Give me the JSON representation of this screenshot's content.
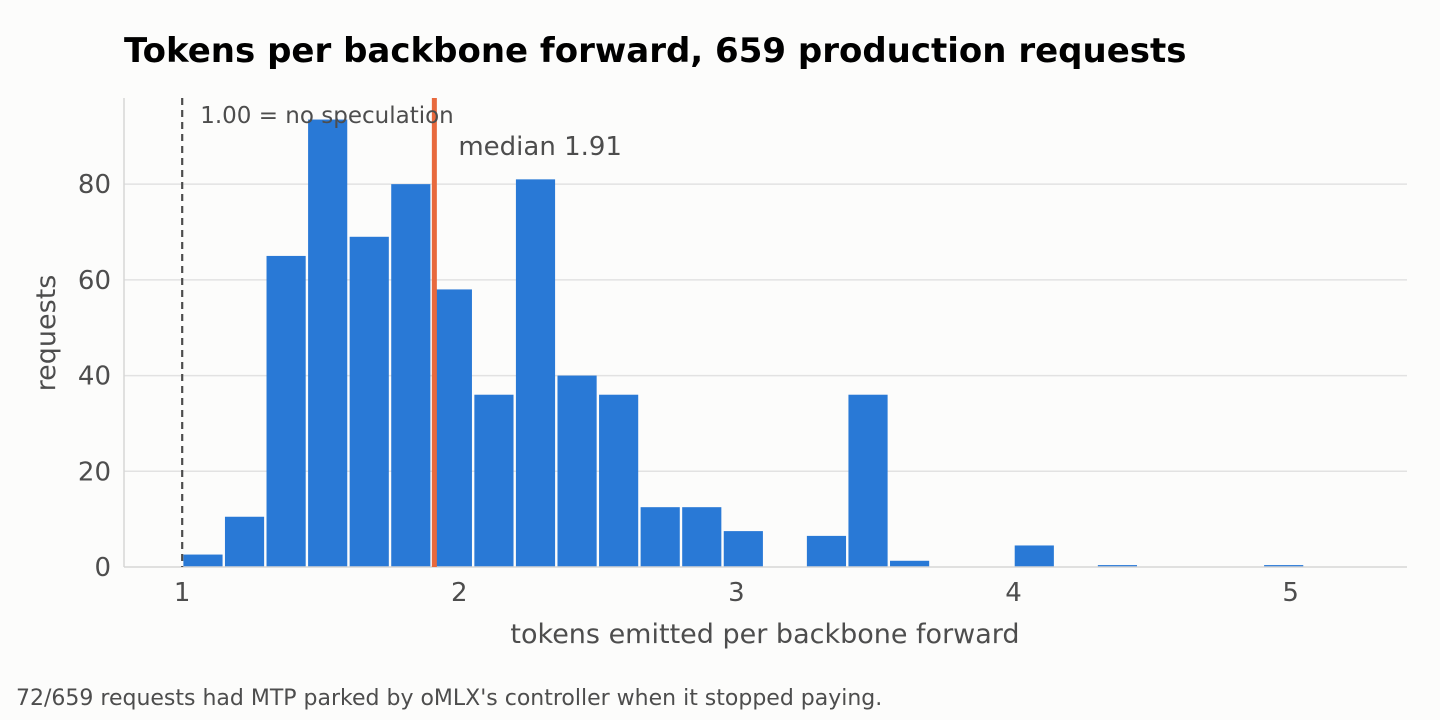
{
  "chart_data": {
    "type": "bar",
    "title": "Tokens per backbone forward, 659 production requests",
    "xlabel": "tokens emitted per backbone forward",
    "ylabel": "requests",
    "xlim": [
      0.79,
      5.42
    ],
    "ylim": [
      0,
      98
    ],
    "xticks": [
      1,
      2,
      3,
      4,
      5
    ],
    "yticks": [
      0,
      20,
      40,
      60,
      80
    ],
    "grid": "y",
    "bin_width": 0.15,
    "bin_starts": [
      1.0,
      1.15,
      1.3,
      1.45,
      1.6,
      1.75,
      1.9,
      2.05,
      2.2,
      2.35,
      2.5,
      2.65,
      2.8,
      2.95,
      3.1,
      3.25,
      3.4,
      3.55,
      3.7,
      3.85,
      4.0,
      4.15,
      4.3,
      4.45,
      4.6,
      4.75,
      4.9
    ],
    "values": [
      2.6,
      10.5,
      65,
      93.5,
      69,
      80,
      58,
      36,
      81,
      40,
      36,
      12.5,
      12.5,
      7.5,
      0,
      6.5,
      36,
      1.3,
      0,
      0,
      4.5,
      0,
      0.4,
      0,
      0,
      0,
      0.4
    ],
    "bar_color": "#2979d6",
    "reference_line": {
      "x": 1.0,
      "label": "1.00 = no speculation",
      "color": "#4d4d4d",
      "style": "dashed"
    },
    "median_line": {
      "x": 1.91,
      "label": "median 1.91",
      "color": "#e8693d"
    }
  },
  "footnote": "72/659 requests had MTP parked by oMLX's controller when it stopped paying."
}
